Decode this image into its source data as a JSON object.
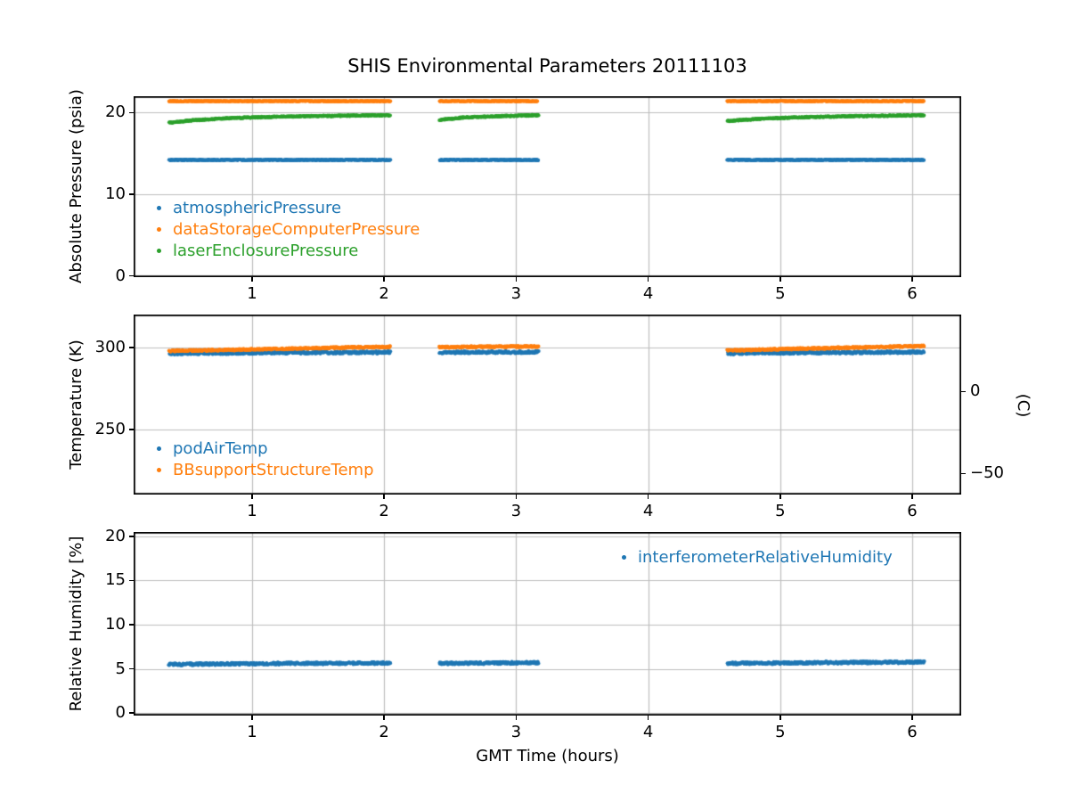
{
  "figure_title": "SHIS Environmental Parameters 20111103",
  "chart_data": [
    {
      "type": "scatter",
      "title": "",
      "xlabel": "",
      "ylabel": "Absolute Pressure (psia)",
      "xlim": [
        0.103,
        6.371
      ],
      "ylim": [
        -0.15,
        22.0
      ],
      "xticks": [
        "1",
        "2",
        "3",
        "4",
        "5",
        "6"
      ],
      "xtick_values": [
        1,
        2,
        3,
        4,
        5,
        6
      ],
      "yticks": [
        "0",
        "10",
        "20"
      ],
      "ytick_values": [
        0,
        10,
        20
      ],
      "grid": true,
      "legend_position": "lower-left-inside",
      "series": [
        {
          "name": "atmosphericPressure",
          "color": "#1f77b4",
          "noise": 0.06,
          "segments": [
            {
              "x": [
                0.37,
                2.05
              ],
              "y": [
                14.2,
                14.2
              ]
            },
            {
              "x": [
                2.42,
                3.17
              ],
              "y": [
                14.2,
                14.2
              ]
            },
            {
              "x": [
                4.6,
                6.09
              ],
              "y": [
                14.2,
                14.2
              ]
            }
          ]
        },
        {
          "name": "dataStorageComputerPressure",
          "color": "#ff7f0e",
          "noise": 0.06,
          "segments": [
            {
              "x": [
                0.37,
                2.05
              ],
              "y": [
                21.4,
                21.4
              ]
            },
            {
              "x": [
                2.42,
                3.17
              ],
              "y": [
                21.4,
                21.4
              ]
            },
            {
              "x": [
                4.6,
                6.09
              ],
              "y": [
                21.4,
                21.4
              ]
            }
          ]
        },
        {
          "name": "laserEnclosurePressure",
          "color": "#2ca02c",
          "noise": 0.07,
          "segments": [
            {
              "x": [
                0.37,
                0.55,
                0.8,
                1.1,
                1.4,
                1.7,
                2.05
              ],
              "y": [
                18.75,
                19.05,
                19.3,
                19.45,
                19.55,
                19.62,
                19.68
              ]
            },
            {
              "x": [
                2.42,
                2.6,
                2.85,
                3.17
              ],
              "y": [
                19.1,
                19.4,
                19.55,
                19.68
              ]
            },
            {
              "x": [
                4.6,
                4.8,
                5.1,
                5.5,
                5.9,
                6.09
              ],
              "y": [
                18.95,
                19.2,
                19.4,
                19.55,
                19.63,
                19.68
              ]
            }
          ]
        }
      ]
    },
    {
      "type": "scatter",
      "title": "",
      "xlabel": "",
      "ylabel": "Temperature (K)",
      "xlim": [
        0.103,
        6.371
      ],
      "ylim": [
        210.3,
        320.1
      ],
      "xticks": [
        "1",
        "2",
        "3",
        "4",
        "5",
        "6"
      ],
      "xtick_values": [
        1,
        2,
        3,
        4,
        5,
        6
      ],
      "yticks": [
        "250",
        "300"
      ],
      "ytick_values": [
        250,
        300
      ],
      "grid": true,
      "legend_position": "lower-left-inside",
      "right_axis": {
        "label": "(C)",
        "ticks": [
          {
            "value": 273.15,
            "label": "0"
          },
          {
            "value": 223.15,
            "label": "−50"
          }
        ]
      },
      "series": [
        {
          "name": "podAirTemp",
          "color": "#1f77b4",
          "noise": 0.7,
          "segments": [
            {
              "x": [
                0.37,
                1.2,
                2.05
              ],
              "y": [
                296.3,
                296.8,
                297.1
              ]
            },
            {
              "x": [
                2.42,
                3.17
              ],
              "y": [
                297.0,
                297.2
              ]
            },
            {
              "x": [
                4.6,
                5.4,
                6.09
              ],
              "y": [
                296.5,
                296.9,
                297.2
              ]
            }
          ]
        },
        {
          "name": "BBsupportStructureTemp",
          "color": "#ff7f0e",
          "noise": 0.5,
          "segments": [
            {
              "x": [
                0.37,
                0.8,
                1.3,
                1.7,
                2.05
              ],
              "y": [
                297.9,
                298.5,
                299.3,
                300.0,
                300.4
              ]
            },
            {
              "x": [
                2.42,
                2.8,
                3.17
              ],
              "y": [
                300.2,
                300.5,
                300.6
              ]
            },
            {
              "x": [
                4.6,
                5.0,
                5.5,
                6.09
              ],
              "y": [
                298.2,
                299.0,
                299.9,
                300.9
              ]
            }
          ]
        }
      ]
    },
    {
      "type": "scatter",
      "title": "",
      "xlabel": "GMT Time (hours)",
      "ylabel": "Relative Humidity [%]",
      "xlim": [
        0.103,
        6.371
      ],
      "ylim": [
        -0.3,
        20.5
      ],
      "xticks": [
        "1",
        "2",
        "3",
        "4",
        "5",
        "6"
      ],
      "xtick_values": [
        1,
        2,
        3,
        4,
        5,
        6
      ],
      "yticks": [
        "0",
        "5",
        "10",
        "15",
        "20"
      ],
      "ytick_values": [
        0,
        5,
        10,
        15,
        20
      ],
      "grid": true,
      "legend_position": "upper-right-inside",
      "series": [
        {
          "name": "interferometerRelativeHumidity",
          "color": "#1f77b4",
          "noise": 0.13,
          "segments": [
            {
              "x": [
                0.37,
                1.2,
                2.05
              ],
              "y": [
                5.5,
                5.6,
                5.65
              ]
            },
            {
              "x": [
                2.42,
                3.17
              ],
              "y": [
                5.6,
                5.7
              ]
            },
            {
              "x": [
                4.6,
                5.4,
                6.09
              ],
              "y": [
                5.6,
                5.7,
                5.75
              ]
            }
          ]
        }
      ]
    }
  ],
  "colors": {
    "series_blue": "#1f77b4",
    "series_orange": "#ff7f0e",
    "series_green": "#2ca02c",
    "grid": "#bdbdbd",
    "axis": "#000000"
  }
}
